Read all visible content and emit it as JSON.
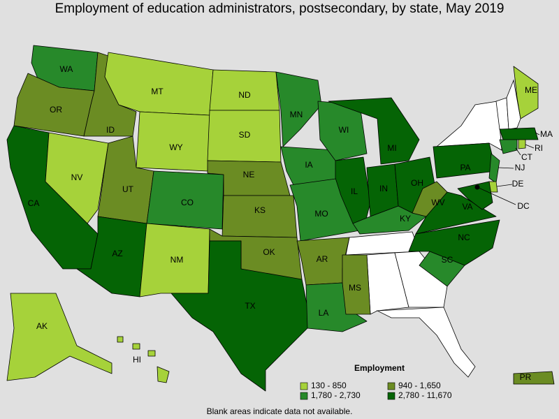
{
  "title": "Employment of education administrators, postsecondary, by state, May 2019",
  "legend": {
    "title": "Employment",
    "items": [
      {
        "label": "130 - 850",
        "color": "#a6d23a"
      },
      {
        "label": "940 - 1,650",
        "color": "#6b8c23"
      },
      {
        "label": "1,780 - 2,730",
        "color": "#27892a"
      },
      {
        "label": "2,780 - 11,670",
        "color": "#056405"
      }
    ]
  },
  "states": [
    {
      "label": "WA",
      "class": 2
    },
    {
      "label": "OR",
      "class": 1
    },
    {
      "label": "CA",
      "class": 3
    },
    {
      "label": "NV",
      "class": 0
    },
    {
      "label": "ID",
      "class": 1
    },
    {
      "label": "MT",
      "class": 0
    },
    {
      "label": "WY",
      "class": 0
    },
    {
      "label": "UT",
      "class": 1
    },
    {
      "label": "AZ",
      "class": 3
    },
    {
      "label": "CO",
      "class": 2
    },
    {
      "label": "NM",
      "class": 0
    },
    {
      "label": "ND",
      "class": 0
    },
    {
      "label": "SD",
      "class": 0
    },
    {
      "label": "NE",
      "class": 1
    },
    {
      "label": "KS",
      "class": 1
    },
    {
      "label": "OK",
      "class": 1
    },
    {
      "label": "TX",
      "class": 3
    },
    {
      "label": "MN",
      "class": 2
    },
    {
      "label": "IA",
      "class": 2
    },
    {
      "label": "MO",
      "class": 2
    },
    {
      "label": "AR",
      "class": 1
    },
    {
      "label": "LA",
      "class": 2
    },
    {
      "label": "MS",
      "class": 1
    },
    {
      "label": "WI",
      "class": 2
    },
    {
      "label": "IL",
      "class": 3
    },
    {
      "label": "MI",
      "class": 3
    },
    {
      "label": "IN",
      "class": 3
    },
    {
      "label": "OH",
      "class": 3
    },
    {
      "label": "KY",
      "class": 2
    },
    {
      "label": "WV",
      "class": 1
    },
    {
      "label": "VA",
      "class": 3
    },
    {
      "label": "NC",
      "class": 3
    },
    {
      "label": "SC",
      "class": 2
    },
    {
      "label": "PA",
      "class": 3
    },
    {
      "label": "NJ",
      "class": 2
    },
    {
      "label": "ME",
      "class": 0
    },
    {
      "label": "MA",
      "class": 3
    },
    {
      "label": "CT",
      "class": 2
    },
    {
      "label": "RI",
      "class": 0
    },
    {
      "label": "DE",
      "class": 0
    },
    {
      "label": null,
      "class": 3
    },
    {
      "label": "DC",
      "class": 3
    },
    {
      "label": "AK",
      "class": 0
    },
    {
      "label": "HI",
      "class": 0
    },
    {
      "label": "PR",
      "class": 1
    }
  ],
  "footnote": "Blank areas indicate data not available."
}
